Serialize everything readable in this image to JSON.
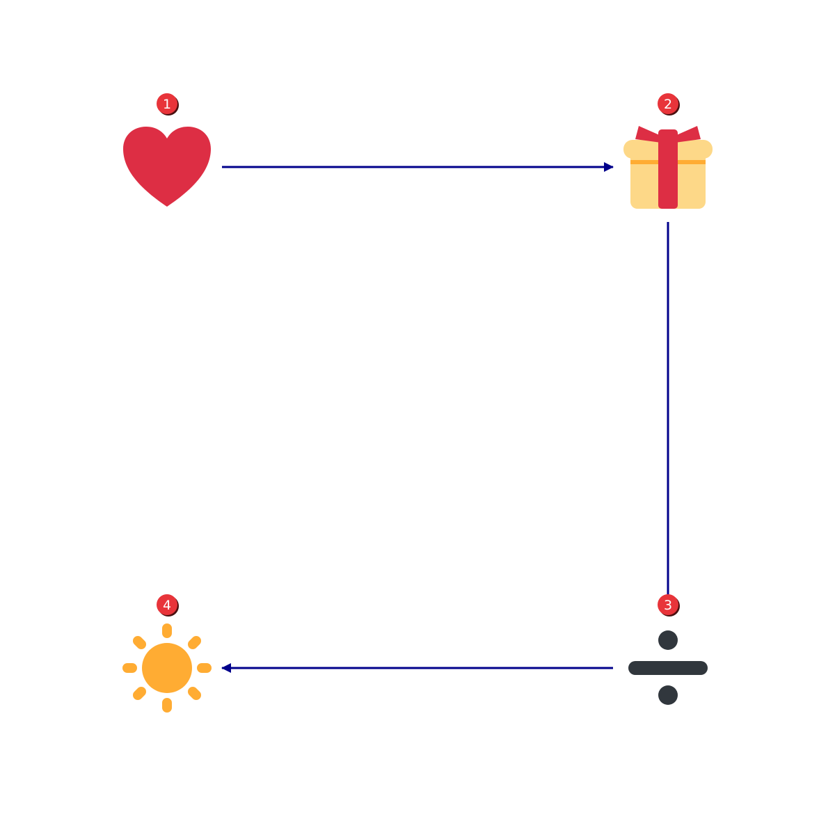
{
  "diagram": {
    "colors": {
      "background": "#ffffff",
      "connector": "#00008b",
      "badge_fill": "#e8343a",
      "badge_shadow": "#4a1010",
      "badge_text": "#ffffff"
    },
    "nodes": [
      {
        "id": "heart",
        "badge": "1",
        "icon": "heart-icon",
        "colors": {
          "primary": "#dd2e44"
        }
      },
      {
        "id": "gift",
        "badge": "2",
        "icon": "gift-icon",
        "colors": {
          "box": "#fdd888",
          "ribbon": "#dd2e44",
          "band": "#ffac33"
        }
      },
      {
        "id": "divide",
        "badge": "3",
        "icon": "divide-icon",
        "colors": {
          "primary": "#31373d"
        }
      },
      {
        "id": "sun",
        "badge": "4",
        "icon": "sun-icon",
        "colors": {
          "primary": "#ffac33"
        }
      }
    ],
    "edges": [
      {
        "from": "heart",
        "to": "gift",
        "arrow": "end"
      },
      {
        "from": "gift",
        "to": "divide",
        "arrow": "none"
      },
      {
        "from": "divide",
        "to": "sun",
        "arrow": "end"
      }
    ]
  }
}
